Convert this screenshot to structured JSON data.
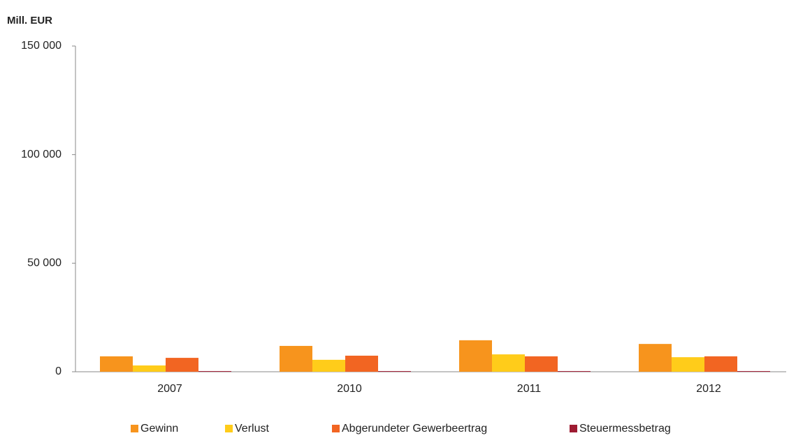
{
  "chart_data": {
    "type": "bar",
    "y_axis_label": "Mill. EUR",
    "categories": [
      "2007",
      "2010",
      "2011",
      "2012"
    ],
    "series": [
      {
        "name": "Gewinn",
        "color": "#f7941d",
        "values": [
          7100,
          11900,
          14500,
          12800
        ]
      },
      {
        "name": "Verlust",
        "color": "#ffcc1a",
        "values": [
          2900,
          5500,
          8000,
          6700
        ]
      },
      {
        "name": "Abgerundeter Gewerbeertrag",
        "color": "#f26522",
        "values": [
          6400,
          7400,
          7100,
          7100
        ]
      },
      {
        "name": "Steuermessbetrag",
        "color": "#9e1b32",
        "values": [
          300,
          300,
          300,
          300
        ]
      }
    ],
    "ylim": [
      0,
      150000
    ],
    "yticks": [
      0,
      {
        "value": 50000,
        "label": "50 000"
      },
      {
        "value": 100000,
        "label": "100 000"
      },
      {
        "value": 150000,
        "label": "150 000"
      }
    ],
    "grid": false,
    "legend": "bottom"
  }
}
